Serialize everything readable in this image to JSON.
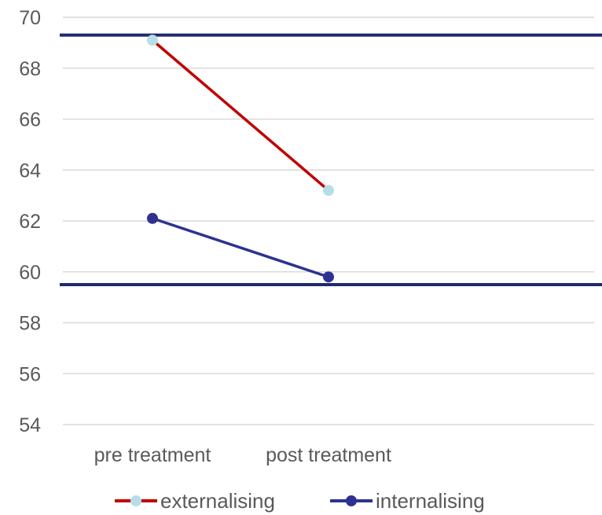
{
  "chart_data": {
    "type": "line",
    "categories": [
      "pre treatment",
      "post treatment"
    ],
    "series": [
      {
        "name": "externalising",
        "values": [
          69.1,
          63.2
        ],
        "line_color": "#c00000",
        "marker_color": "#b7dde8"
      },
      {
        "name": "internalising",
        "values": [
          62.1,
          59.8
        ],
        "line_color": "#2e3192",
        "marker_color": "#2e3192"
      }
    ],
    "reference_lines": [
      {
        "value": 69.3,
        "color": "#1f2a6b"
      },
      {
        "value": 59.5,
        "color": "#1f2a6b"
      }
    ],
    "y_ticks": [
      "54",
      "56",
      "58",
      "60",
      "62",
      "64",
      "66",
      "68",
      "70"
    ],
    "ylim": [
      54,
      70
    ],
    "grid": true,
    "legend_position": "bottom"
  }
}
